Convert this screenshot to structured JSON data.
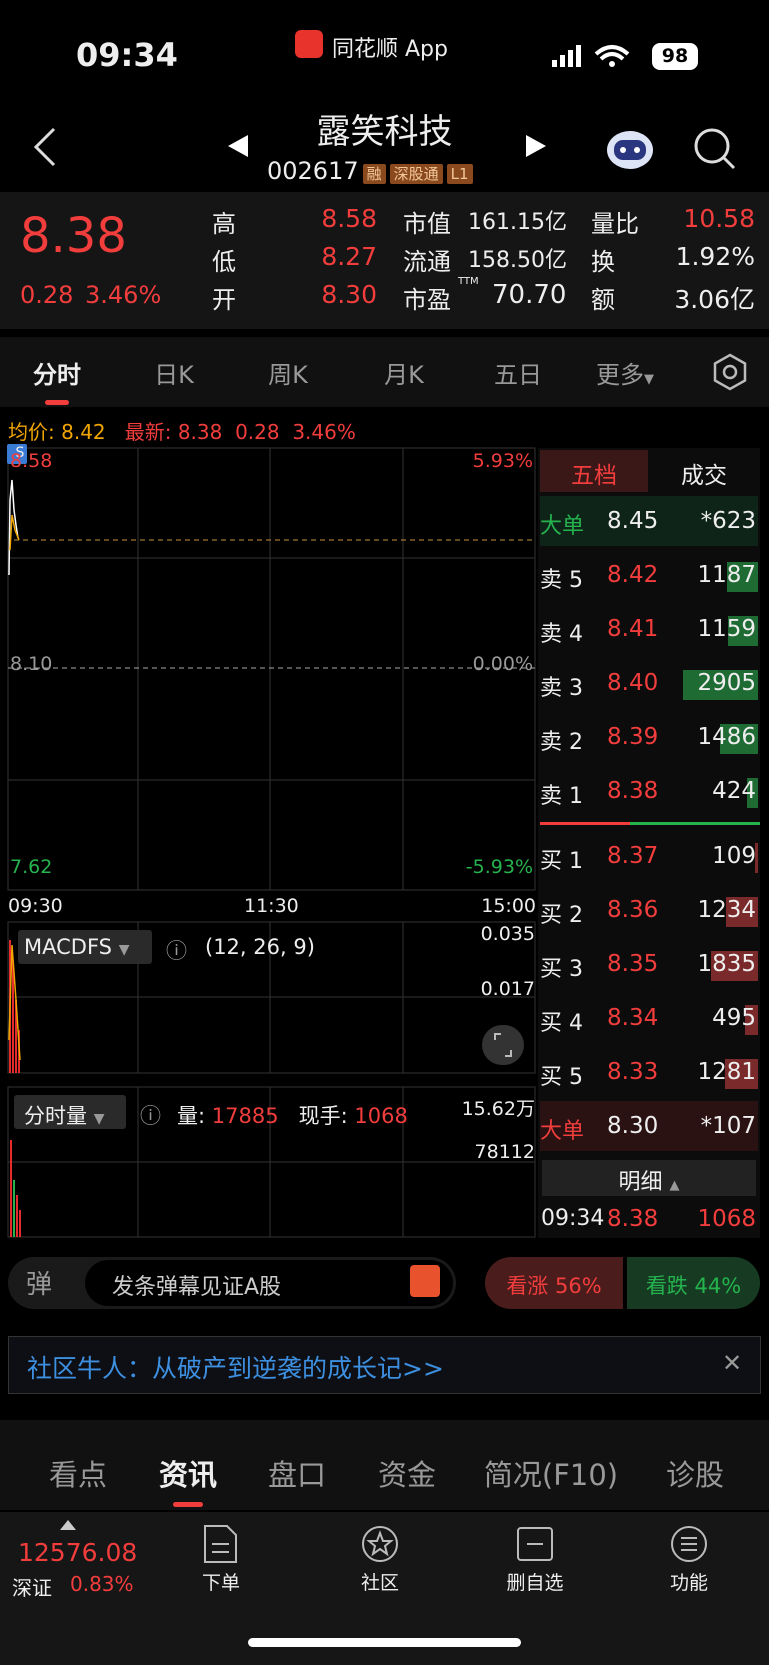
{
  "status_bar": {
    "time": "09:34",
    "app": "同花顺 App",
    "battery": "98"
  },
  "header": {
    "name": "露笑科技",
    "code": "002617",
    "tags": [
      "融",
      "深股通",
      "L1"
    ]
  },
  "quote": {
    "price": "8.38",
    "change": "0.28",
    "change_pct": "3.46%",
    "stats": [
      {
        "label": "高",
        "value": "8.58"
      },
      {
        "label": "低",
        "value": "8.27"
      },
      {
        "label": "开",
        "value": "8.30"
      },
      {
        "label": "市值",
        "value": "161.15亿"
      },
      {
        "label": "流通",
        "value": "158.50亿"
      },
      {
        "label": "市盈",
        "sup": "TTM",
        "value": "70.70"
      },
      {
        "label": "量比",
        "value": "10.58"
      },
      {
        "label": "换",
        "value": "1.92%"
      },
      {
        "label": "额",
        "value": "3.06亿"
      }
    ]
  },
  "tabs": [
    "分时",
    "日K",
    "周K",
    "月K",
    "五日",
    "更多"
  ],
  "intraday": {
    "avg_label": "均价:",
    "avg": "8.42",
    "last_label": "最新:",
    "last": "8.38",
    "change": "0.28",
    "change_pct": "3.46%",
    "price_labels": [
      "8.58",
      "8.10",
      "7.62"
    ],
    "pct_labels": [
      "5.93%",
      "0.00%",
      "-5.93%"
    ],
    "times": [
      "09:30",
      "11:30",
      "15:00"
    ],
    "marker": "S"
  },
  "macd": {
    "name": "MACDFS",
    "params": "(12, 26, 9)",
    "levels": [
      "0.035",
      "0.017"
    ]
  },
  "volume": {
    "name": "分时量",
    "vol_label": "量:",
    "vol": "17885",
    "hand_label": "现手:",
    "hand": "1068",
    "levels": [
      "15.62万",
      "78112"
    ]
  },
  "order_book": {
    "tabs": [
      "五档",
      "成交"
    ],
    "rows": [
      {
        "label": "大单",
        "price": "8.45",
        "volume": "*623"
      },
      {
        "label": "卖 5",
        "price": "8.42",
        "volume": "1187"
      },
      {
        "label": "卖 4",
        "price": "8.41",
        "volume": "1159"
      },
      {
        "label": "卖 3",
        "price": "8.40",
        "volume": "2905"
      },
      {
        "label": "卖 2",
        "price": "8.39",
        "volume": "1486"
      },
      {
        "label": "卖 1",
        "price": "8.38",
        "volume": "424"
      },
      {
        "label": "买 1",
        "price": "8.37",
        "volume": "109"
      },
      {
        "label": "买 2",
        "price": "8.36",
        "volume": "1234"
      },
      {
        "label": "买 3",
        "price": "8.35",
        "volume": "1835"
      },
      {
        "label": "买 4",
        "price": "8.34",
        "volume": "495"
      },
      {
        "label": "买 5",
        "price": "8.33",
        "volume": "1281"
      },
      {
        "label": "大单",
        "price": "8.30",
        "volume": "*107"
      }
    ],
    "detail": "明细",
    "last_trade": {
      "time": "09:34",
      "price": "8.38",
      "volume": "1068"
    }
  },
  "danmaku": {
    "icon": "弹",
    "placeholder": "发条弹幕见证A股",
    "up": "看涨 56%",
    "down": "看跌 44%"
  },
  "banner": "社区牛人：从破产到逆袭的成长记>>",
  "sections": [
    "看点",
    "资讯",
    "盘口",
    "资金",
    "简况(F10)",
    "诊股"
  ],
  "footer": {
    "index": "12576.08",
    "market": "深证",
    "index_pct": "0.83%",
    "actions": [
      "下单",
      "社区",
      "删自选",
      "功能"
    ]
  }
}
